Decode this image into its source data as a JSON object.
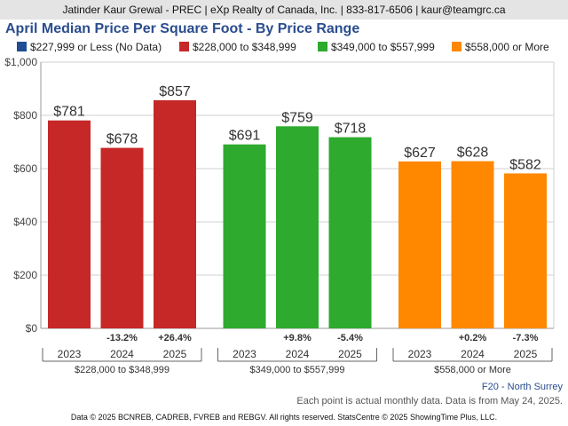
{
  "header": {
    "text": "Jatinder Kaur Grewal - PREC | eXp Realty of Canada, Inc. | 833-817-6506 | kaur@teamgrc.ca"
  },
  "chart_data": {
    "type": "bar",
    "title": "April Median Price Per Square Foot - By Price Range",
    "legend": [
      {
        "name": "$227,999 or Less (No Data)",
        "color": "#1f4e96"
      },
      {
        "name": "$228,000 to $348,999",
        "color": "#c62828"
      },
      {
        "name": "$349,000 to $557,999",
        "color": "#2eaa2e"
      },
      {
        "name": "$558,000 or More",
        "color": "#ff8800"
      }
    ],
    "y_ticks": [
      "$1,000",
      "$800",
      "$600",
      "$400",
      "$200",
      "$0"
    ],
    "ylim": [
      0,
      1000
    ],
    "grid": true,
    "groups": [
      {
        "name": "$228,000 to $348,999",
        "color": "#c62828",
        "years": [
          "2023",
          "2024",
          "2025"
        ],
        "values": [
          781,
          678,
          857
        ],
        "value_labels": [
          "$781",
          "$678",
          "$857"
        ],
        "changes": [
          "",
          "-13.2%",
          "+26.4%"
        ]
      },
      {
        "name": "$349,000 to $557,999",
        "color": "#2eaa2e",
        "years": [
          "2023",
          "2024",
          "2025"
        ],
        "values": [
          691,
          759,
          718
        ],
        "value_labels": [
          "$691",
          "$759",
          "$718"
        ],
        "changes": [
          "",
          "+9.8%",
          "-5.4%"
        ]
      },
      {
        "name": "$558,000 or More",
        "color": "#ff8800",
        "years": [
          "2023",
          "2024",
          "2025"
        ],
        "values": [
          627,
          628,
          582
        ],
        "value_labels": [
          "$627",
          "$628",
          "$582"
        ],
        "changes": [
          "",
          "+0.2%",
          "-7.3%"
        ]
      }
    ]
  },
  "footer": {
    "region": "F20 - North Surrey",
    "note": "Each point is actual monthly data. Data is from May 24, 2025.",
    "copyright": "Data © 2025 BCNREB, CADREB, FVREB and REBGV. All rights reserved. StatsCentre © 2025 ShowingTime Plus, LLC."
  }
}
